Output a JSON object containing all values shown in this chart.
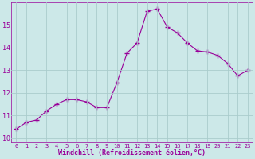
{
  "x": [
    0,
    1,
    2,
    3,
    4,
    5,
    6,
    7,
    8,
    9,
    10,
    11,
    12,
    13,
    14,
    15,
    16,
    17,
    18,
    19,
    20,
    21,
    22,
    23
  ],
  "y": [
    10.4,
    10.7,
    10.8,
    11.2,
    11.5,
    11.7,
    11.7,
    11.6,
    11.35,
    11.35,
    12.45,
    13.75,
    14.2,
    15.6,
    15.7,
    14.9,
    14.65,
    14.2,
    13.85,
    13.8,
    13.65,
    13.3,
    12.75,
    13.0
  ],
  "line_color": "#990099",
  "marker": "+",
  "marker_size": 4,
  "bg_color": "#cce8e8",
  "grid_color": "#aacccc",
  "xlabel": "Windchill (Refroidissement éolien,°C)",
  "xlabel_color": "#990099",
  "tick_color": "#990099",
  "ylabel_ticks": [
    10,
    11,
    12,
    13,
    14,
    15
  ],
  "xlim": [
    -0.5,
    23.5
  ],
  "ylim": [
    9.8,
    16.0
  ]
}
